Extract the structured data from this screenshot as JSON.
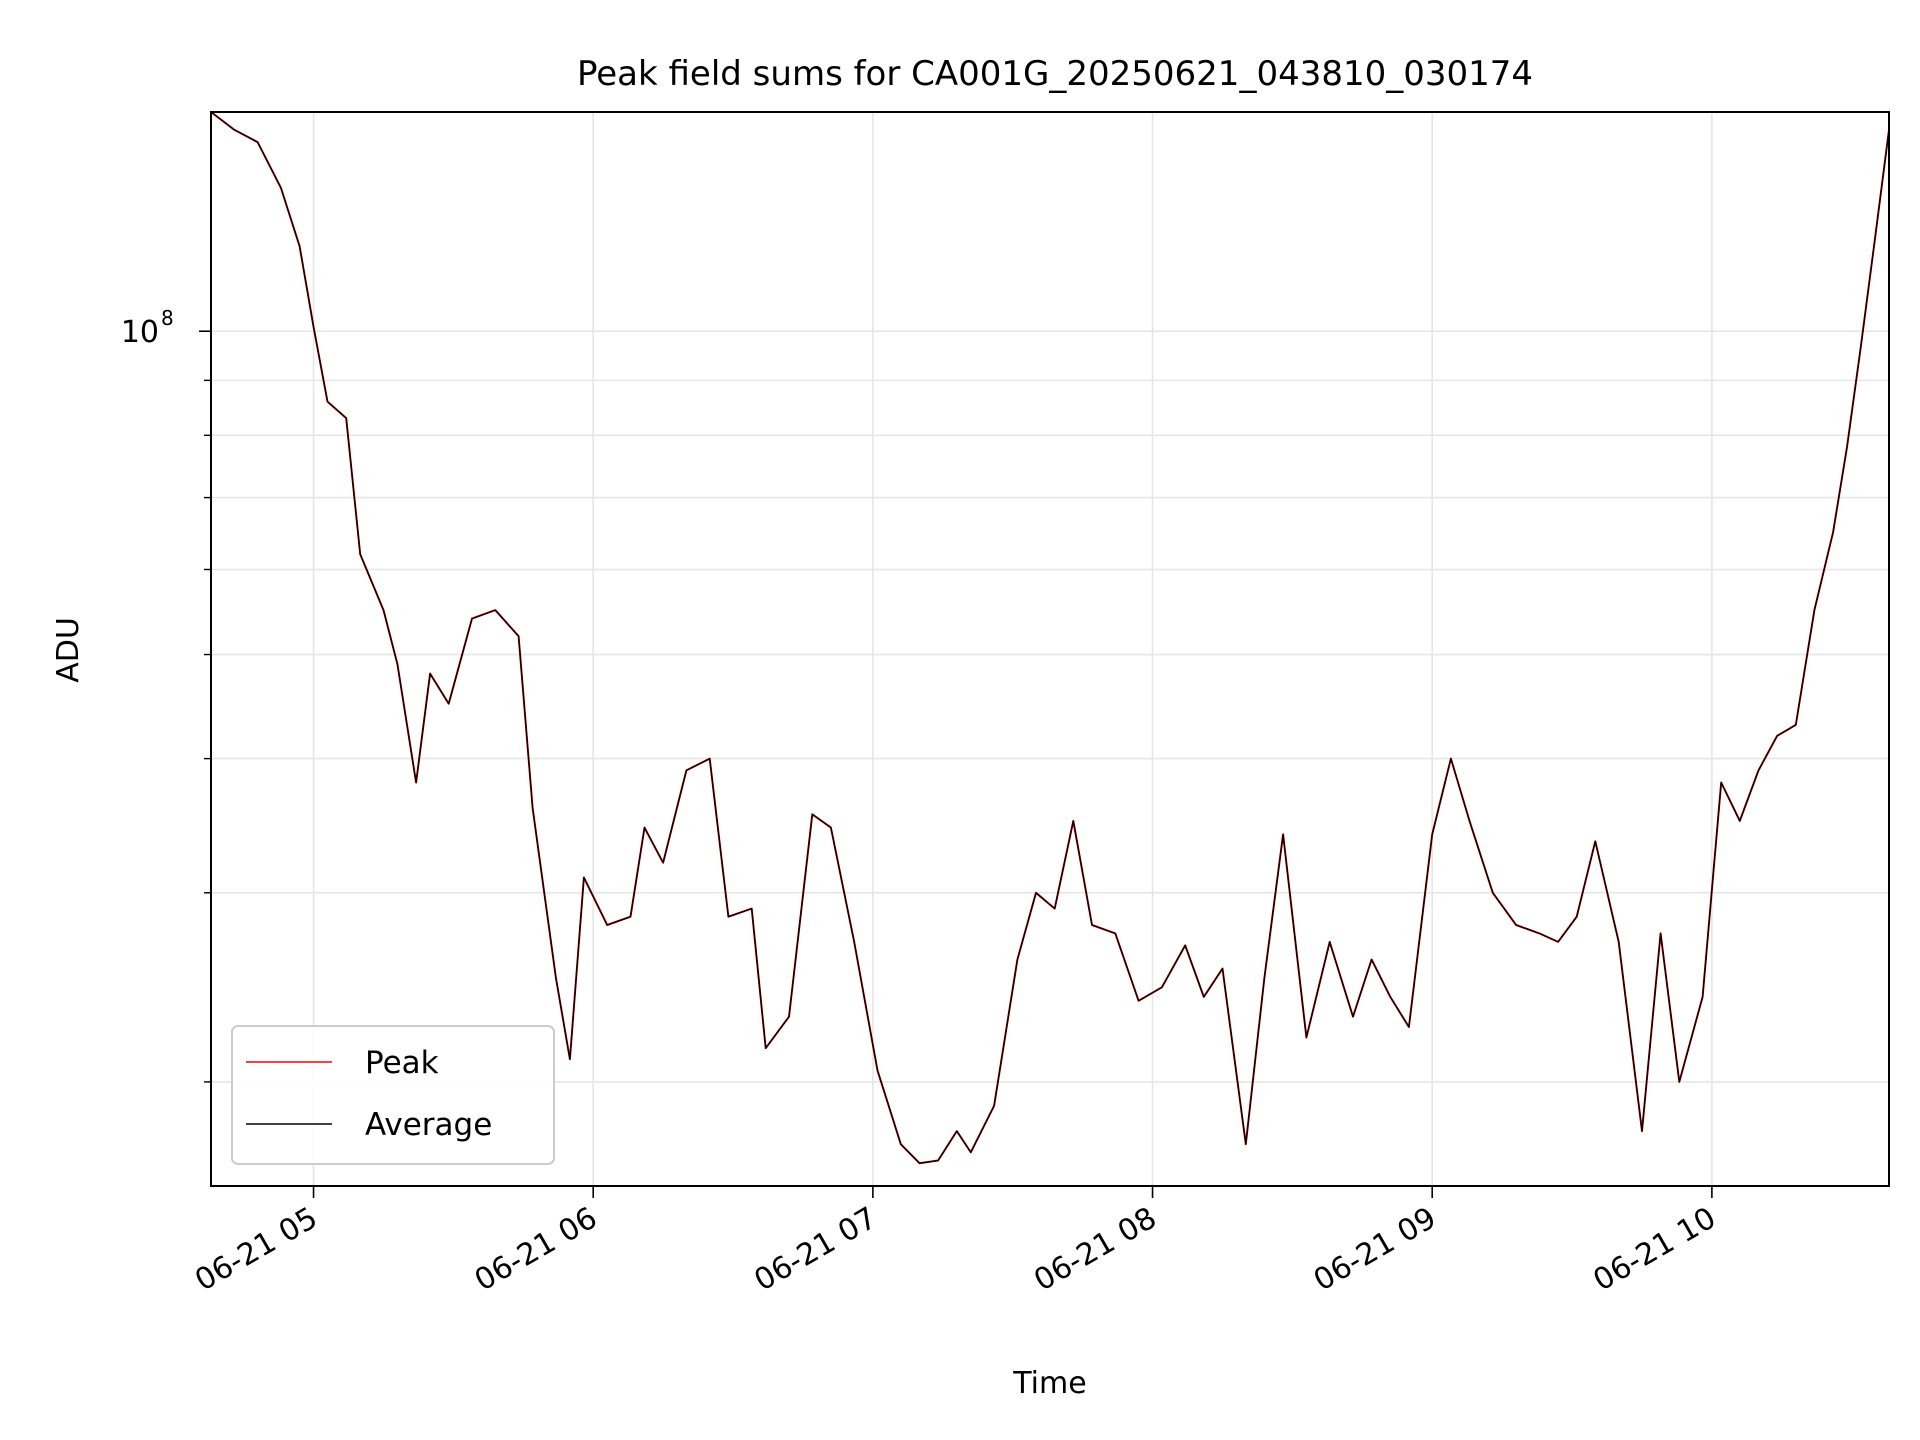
{
  "chart_data": {
    "type": "line",
    "title": "Peak field sums for CA001G_20250621_043810_030174",
    "xlabel": "Time",
    "ylabel": "ADU",
    "yscale": "log",
    "xlim": [
      "2025-06-21 04:38",
      "2025-06-21 10:38"
    ],
    "ylim": [
      16000000,
      160000000
    ],
    "x_ticks": [
      {
        "value": "2025-06-21 05:00",
        "label": "06-21 05"
      },
      {
        "value": "2025-06-21 06:00",
        "label": "06-21 06"
      },
      {
        "value": "2025-06-21 07:00",
        "label": "06-21 07"
      },
      {
        "value": "2025-06-21 08:00",
        "label": "06-21 08"
      },
      {
        "value": "2025-06-21 09:00",
        "label": "06-21 09"
      },
      {
        "value": "2025-06-21 10:00",
        "label": "06-21 10"
      }
    ],
    "y_major_ticks": [
      {
        "value": 100000000,
        "label_base": "10",
        "label_exp": "8"
      }
    ],
    "y_minor_ticks": [
      20000000,
      30000000,
      40000000,
      50000000,
      60000000,
      70000000,
      80000000,
      90000000
    ],
    "grid": true,
    "legend_position": "lower-left",
    "x": [
      "2025-06-21 04:38",
      "2025-06-21 04:43",
      "2025-06-21 04:48",
      "2025-06-21 04:53",
      "2025-06-21 04:57",
      "2025-06-21 05:00",
      "2025-06-21 05:03",
      "2025-06-21 05:07",
      "2025-06-21 05:10",
      "2025-06-21 05:15",
      "2025-06-21 05:18",
      "2025-06-21 05:22",
      "2025-06-21 05:25",
      "2025-06-21 05:29",
      "2025-06-21 05:34",
      "2025-06-21 05:39",
      "2025-06-21 05:44",
      "2025-06-21 05:47",
      "2025-06-21 05:52",
      "2025-06-21 05:55",
      "2025-06-21 05:58",
      "2025-06-21 06:03",
      "2025-06-21 06:08",
      "2025-06-21 06:11",
      "2025-06-21 06:15",
      "2025-06-21 06:20",
      "2025-06-21 06:25",
      "2025-06-21 06:29",
      "2025-06-21 06:34",
      "2025-06-21 06:37",
      "2025-06-21 06:42",
      "2025-06-21 06:47",
      "2025-06-21 06:51",
      "2025-06-21 06:56",
      "2025-06-21 07:01",
      "2025-06-21 07:06",
      "2025-06-21 07:10",
      "2025-06-21 07:14",
      "2025-06-21 07:18",
      "2025-06-21 07:21",
      "2025-06-21 07:26",
      "2025-06-21 07:31",
      "2025-06-21 07:35",
      "2025-06-21 07:39",
      "2025-06-21 07:43",
      "2025-06-21 07:47",
      "2025-06-21 07:52",
      "2025-06-21 07:57",
      "2025-06-21 08:02",
      "2025-06-21 08:07",
      "2025-06-21 08:11",
      "2025-06-21 08:15",
      "2025-06-21 08:20",
      "2025-06-21 08:24",
      "2025-06-21 08:28",
      "2025-06-21 08:33",
      "2025-06-21 08:38",
      "2025-06-21 08:43",
      "2025-06-21 08:47",
      "2025-06-21 08:51",
      "2025-06-21 08:55",
      "2025-06-21 09:00",
      "2025-06-21 09:04",
      "2025-06-21 09:08",
      "2025-06-21 09:13",
      "2025-06-21 09:18",
      "2025-06-21 09:23",
      "2025-06-21 09:27",
      "2025-06-21 09:31",
      "2025-06-21 09:35",
      "2025-06-21 09:40",
      "2025-06-21 09:45",
      "2025-06-21 09:49",
      "2025-06-21 09:53",
      "2025-06-21 09:58",
      "2025-06-21 10:02",
      "2025-06-21 10:06",
      "2025-06-21 10:10",
      "2025-06-21 10:14",
      "2025-06-21 10:18",
      "2025-06-21 10:22",
      "2025-06-21 10:26",
      "2025-06-21 10:29",
      "2025-06-21 10:32",
      "2025-06-21 10:35",
      "2025-06-21 10:38"
    ],
    "series": [
      {
        "name": "Peak",
        "color": "#ff0000",
        "values": [
          160000000,
          154000000,
          150000000,
          136000000,
          120000000,
          101000000,
          86000000,
          83000000,
          62000000,
          55000000,
          49000000,
          38000000,
          48000000,
          45000000,
          54000000,
          55000000,
          52000000,
          36000000,
          25000000,
          21000000,
          31000000,
          28000000,
          28500000,
          34500000,
          32000000,
          39000000,
          40000000,
          28500000,
          29000000,
          21500000,
          23000000,
          35500000,
          34500000,
          27000000,
          20500000,
          17500000,
          16800000,
          16900000,
          18000000,
          17200000,
          19000000,
          26000000,
          30000000,
          29000000,
          35000000,
          28000000,
          27500000,
          23800000,
          24500000,
          26800000,
          24000000,
          25500000,
          17500000,
          25000000,
          34000000,
          22000000,
          27000000,
          23000000,
          26000000,
          24000000,
          22500000,
          34000000,
          40000000,
          35000000,
          30000000,
          28000000,
          27500000,
          27000000,
          28500000,
          33500000,
          27000000,
          18000000,
          27500000,
          20000000,
          24000000,
          38000000,
          35000000,
          39000000,
          42000000,
          43000000,
          55000000,
          65000000,
          78000000,
          97000000,
          122000000,
          154000000
        ]
      },
      {
        "name": "Average",
        "color": "#000000",
        "values": [
          160000000,
          154000000,
          150000000,
          136000000,
          120000000,
          101000000,
          86000000,
          83000000,
          62000000,
          55000000,
          49000000,
          38000000,
          48000000,
          45000000,
          54000000,
          55000000,
          52000000,
          36000000,
          25000000,
          21000000,
          31000000,
          28000000,
          28500000,
          34500000,
          32000000,
          39000000,
          40000000,
          28500000,
          29000000,
          21500000,
          23000000,
          35500000,
          34500000,
          27000000,
          20500000,
          17500000,
          16800000,
          16900000,
          18000000,
          17200000,
          19000000,
          26000000,
          30000000,
          29000000,
          35000000,
          28000000,
          27500000,
          23800000,
          24500000,
          26800000,
          24000000,
          25500000,
          17500000,
          25000000,
          34000000,
          22000000,
          27000000,
          23000000,
          26000000,
          24000000,
          22500000,
          34000000,
          40000000,
          35000000,
          30000000,
          28000000,
          27500000,
          27000000,
          28500000,
          33500000,
          27000000,
          18000000,
          27500000,
          20000000,
          24000000,
          38000000,
          35000000,
          39000000,
          42000000,
          43000000,
          55000000,
          65000000,
          78000000,
          97000000,
          122000000,
          154000000
        ]
      }
    ]
  }
}
